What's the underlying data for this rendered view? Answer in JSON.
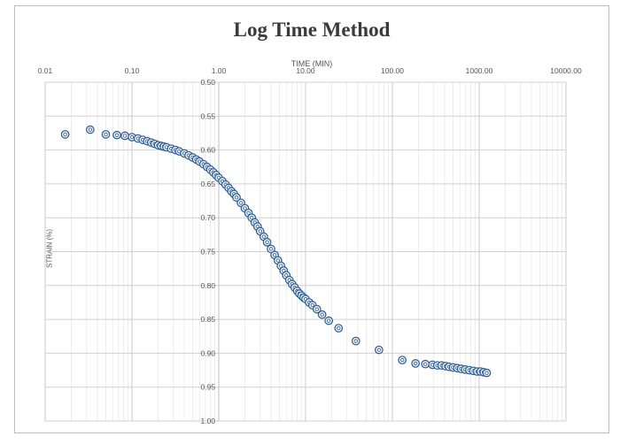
{
  "chart_data": {
    "type": "scatter",
    "title": "Log Time Method",
    "xlabel": "TIME (MIN)",
    "ylabel": "STRAIN (%)",
    "x_scale": "log",
    "xlim": [
      0.01,
      10000
    ],
    "ylim": [
      0.5,
      1.0
    ],
    "y_reversed": true,
    "x_axis_position": "top",
    "grid": true,
    "x_tick_labels": [
      "0.01",
      "0.10",
      "1.00",
      "10.00",
      "100.00",
      "1000.00",
      "10000.00"
    ],
    "y_tick_labels": [
      "0.50",
      "0.55",
      "0.60",
      "0.65",
      "0.70",
      "0.75",
      "0.80",
      "0.85",
      "0.90",
      "0.95",
      "1.00"
    ],
    "marker": "hollow-circle",
    "series": [
      {
        "color": "#2f5f96",
        "points": [
          [
            0.017,
            0.577
          ],
          [
            0.033,
            0.57
          ],
          [
            0.05,
            0.577
          ],
          [
            0.067,
            0.578
          ],
          [
            0.083,
            0.579
          ],
          [
            0.1,
            0.581
          ],
          [
            0.117,
            0.583
          ],
          [
            0.133,
            0.585
          ],
          [
            0.15,
            0.587
          ],
          [
            0.167,
            0.589
          ],
          [
            0.183,
            0.591
          ],
          [
            0.2,
            0.593
          ],
          [
            0.217,
            0.594
          ],
          [
            0.233,
            0.595
          ],
          [
            0.25,
            0.596
          ],
          [
            0.283,
            0.598
          ],
          [
            0.317,
            0.6
          ],
          [
            0.35,
            0.602
          ],
          [
            0.4,
            0.605
          ],
          [
            0.45,
            0.608
          ],
          [
            0.5,
            0.611
          ],
          [
            0.55,
            0.614
          ],
          [
            0.6,
            0.617
          ],
          [
            0.667,
            0.621
          ],
          [
            0.733,
            0.625
          ],
          [
            0.8,
            0.629
          ],
          [
            0.867,
            0.633
          ],
          [
            0.933,
            0.637
          ],
          [
            1.0,
            0.641
          ],
          [
            1.1,
            0.646
          ],
          [
            1.2,
            0.651
          ],
          [
            1.3,
            0.656
          ],
          [
            1.4,
            0.661
          ],
          [
            1.5,
            0.665
          ],
          [
            1.6,
            0.67
          ],
          [
            1.8,
            0.678
          ],
          [
            2.0,
            0.686
          ],
          [
            2.2,
            0.693
          ],
          [
            2.4,
            0.7
          ],
          [
            2.6,
            0.707
          ],
          [
            2.8,
            0.713
          ],
          [
            3.0,
            0.72
          ],
          [
            3.3,
            0.728
          ],
          [
            3.6,
            0.736
          ],
          [
            4.0,
            0.746
          ],
          [
            4.4,
            0.755
          ],
          [
            4.8,
            0.763
          ],
          [
            5.2,
            0.771
          ],
          [
            5.6,
            0.778
          ],
          [
            6.0,
            0.785
          ],
          [
            6.5,
            0.792
          ],
          [
            7.0,
            0.798
          ],
          [
            7.5,
            0.803
          ],
          [
            8.0,
            0.808
          ],
          [
            8.5,
            0.812
          ],
          [
            9.0,
            0.815
          ],
          [
            9.5,
            0.818
          ],
          [
            10.0,
            0.82
          ],
          [
            11.0,
            0.825
          ],
          [
            12.0,
            0.829
          ],
          [
            13.5,
            0.835
          ],
          [
            15.5,
            0.843
          ],
          [
            18.5,
            0.852
          ],
          [
            24.0,
            0.863
          ],
          [
            38.0,
            0.882
          ],
          [
            70.0,
            0.895
          ],
          [
            130.0,
            0.91
          ],
          [
            185.0,
            0.915
          ],
          [
            240.0,
            0.916
          ],
          [
            290.0,
            0.917
          ],
          [
            330.0,
            0.918
          ],
          [
            370.0,
            0.918
          ],
          [
            410.0,
            0.919
          ],
          [
            450.0,
            0.92
          ],
          [
            500.0,
            0.921
          ],
          [
            560.0,
            0.922
          ],
          [
            620.0,
            0.923
          ],
          [
            690.0,
            0.924
          ],
          [
            770.0,
            0.925
          ],
          [
            860.0,
            0.926
          ],
          [
            950.0,
            0.927
          ],
          [
            1040.0,
            0.927
          ],
          [
            1130.0,
            0.928
          ],
          [
            1220.0,
            0.929
          ]
        ]
      }
    ]
  }
}
